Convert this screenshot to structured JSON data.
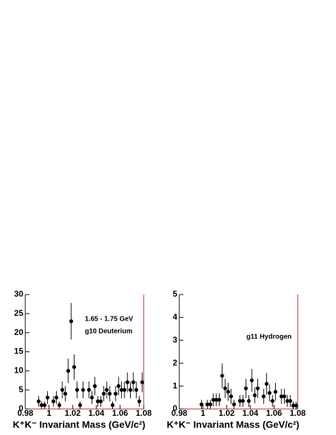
{
  "chart_data": [
    {
      "type": "scatter",
      "color": "#000000",
      "x": [
        0.99125,
        0.99375,
        0.99625,
        0.99875,
        1.00375,
        1.00625,
        1.00875,
        1.01125,
        1.01375,
        1.01625,
        1.01875,
        1.02125,
        1.02375,
        1.02625,
        1.02875,
        1.03375,
        1.03625,
        1.03875,
        1.04125,
        1.04375,
        1.04625,
        1.04875,
        1.05125,
        1.05375,
        1.05625,
        1.05875,
        1.06125,
        1.06375,
        1.06625,
        1.06875,
        1.07125,
        1.07375,
        1.07625,
        1.07875
      ],
      "values": [
        2,
        1,
        1,
        3,
        2,
        3,
        1,
        5,
        4,
        10,
        23,
        11,
        5,
        1,
        5,
        5,
        3,
        6,
        2,
        2,
        4,
        5,
        4,
        1,
        4,
        6,
        5,
        5,
        7,
        5,
        7,
        5,
        2,
        7
      ],
      "errors": [
        1.4,
        1,
        1,
        1.7,
        1.4,
        1.7,
        1,
        2.2,
        2,
        3.2,
        4.8,
        3.3,
        2.2,
        1,
        2.2,
        2.2,
        1.7,
        2.4,
        1.4,
        1.4,
        2,
        2.2,
        2,
        1,
        2,
        2.4,
        2.2,
        2.2,
        2.6,
        2.2,
        2.6,
        2.2,
        1.4,
        2.6
      ],
      "xlim": [
        0.98,
        1.08
      ],
      "ylim": [
        0,
        30
      ],
      "xticks": [
        {
          "value": 0.98,
          "label": "0.98"
        },
        1,
        1.02,
        1.04,
        1.06,
        1.08
      ],
      "yticks": [
        0,
        5,
        10,
        15,
        20,
        25,
        30
      ],
      "annotations": [
        "1.65 - 1.75 GeV",
        "g10 Deuterium"
      ],
      "x_label": "K⁺K⁻ Invariant Mass (GeV/c²)"
    },
    {
      "type": "scatter",
      "color": "#000000",
      "x": [
        0.99875,
        1.00375,
        1.00625,
        1.00875,
        1.01125,
        1.01375,
        1.01625,
        1.01875,
        1.02125,
        1.02375,
        1.02625,
        1.03125,
        1.03375,
        1.03625,
        1.03875,
        1.04125,
        1.04375,
        1.04625,
        1.05125,
        1.05375,
        1.05625,
        1.05875,
        1.06125,
        1.06625,
        1.06875,
        1.07125,
        1.07375,
        1.07625,
        1.07875
      ],
      "values": [
        0.2,
        0.2,
        0.2,
        0.4,
        0.4,
        0.4,
        1.45,
        0.9,
        0.75,
        0.55,
        0.2,
        0.35,
        0.35,
        0.9,
        0.35,
        1.25,
        0.6,
        0.9,
        0.55,
        1.1,
        0.7,
        0.35,
        0.75,
        0.55,
        0.55,
        0.35,
        0.35,
        0.15,
        0.15
      ],
      "errors": [
        0.2,
        0.2,
        0.2,
        0.28,
        0.28,
        0.28,
        0.54,
        0.42,
        0.39,
        0.33,
        0.2,
        0.26,
        0.26,
        0.42,
        0.26,
        0.5,
        0.35,
        0.42,
        0.33,
        0.47,
        0.37,
        0.26,
        0.39,
        0.33,
        0.33,
        0.26,
        0.26,
        0.17,
        0.17
      ],
      "xlim": [
        0.98,
        1.08
      ],
      "ylim": [
        0,
        5
      ],
      "xticks": [
        {
          "value": 0.98,
          "label": "0.98"
        },
        1,
        1.02,
        1.04,
        1.06,
        1.08
      ],
      "yticks": [
        0,
        1,
        2,
        3,
        4,
        5
      ],
      "annotations": [
        "g11 Hydrogen"
      ],
      "x_label": "K⁺K⁻ Invariant Mass (GeV/c²)"
    }
  ]
}
